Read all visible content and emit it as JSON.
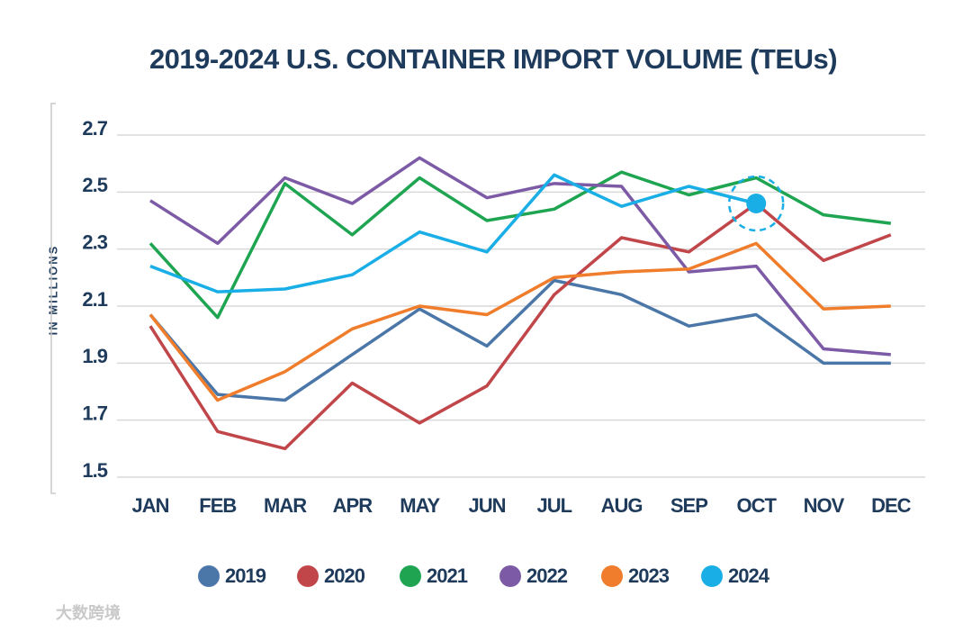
{
  "chart_data": {
    "type": "line",
    "title": "2019-2024 U.S. CONTAINER IMPORT VOLUME (TEUs)",
    "y_label": "IN MILLIONS",
    "watermark": "大数跨境",
    "categories": [
      "JAN",
      "FEB",
      "MAR",
      "APR",
      "MAY",
      "JUN",
      "JUL",
      "AUG",
      "SEP",
      "OCT",
      "NOV",
      "DEC"
    ],
    "series": [
      {
        "name": "2019",
        "color": "#4a76a8",
        "values": [
          2.07,
          1.79,
          1.77,
          1.93,
          2.09,
          1.96,
          2.19,
          2.14,
          2.03,
          2.07,
          1.9,
          1.9
        ]
      },
      {
        "name": "2020",
        "color": "#c0464a",
        "values": [
          2.03,
          1.66,
          1.6,
          1.83,
          1.69,
          1.82,
          2.14,
          2.34,
          2.29,
          2.46,
          2.26,
          2.35
        ]
      },
      {
        "name": "2021",
        "color": "#1fa552",
        "values": [
          2.32,
          2.06,
          2.53,
          2.35,
          2.55,
          2.4,
          2.44,
          2.57,
          2.49,
          2.55,
          2.42,
          2.39
        ]
      },
      {
        "name": "2022",
        "color": "#7c5aa6",
        "values": [
          2.47,
          2.32,
          2.55,
          2.46,
          2.62,
          2.48,
          2.53,
          2.52,
          2.22,
          2.24,
          1.95,
          1.93
        ]
      },
      {
        "name": "2023",
        "color": "#ef7d2b",
        "values": [
          2.07,
          1.77,
          1.87,
          2.02,
          2.1,
          2.07,
          2.2,
          2.22,
          2.23,
          2.32,
          2.09,
          2.1
        ]
      },
      {
        "name": "2024",
        "color": "#1aaee6",
        "values": [
          2.24,
          2.15,
          2.16,
          2.21,
          2.36,
          2.29,
          2.56,
          2.45,
          2.52,
          2.46,
          null,
          null
        ]
      }
    ],
    "ylim": [
      1.5,
      2.7
    ],
    "yticks": [
      1.5,
      1.7,
      1.9,
      2.1,
      2.3,
      2.5,
      2.7
    ],
    "grid": true,
    "legend": "bottom"
  }
}
